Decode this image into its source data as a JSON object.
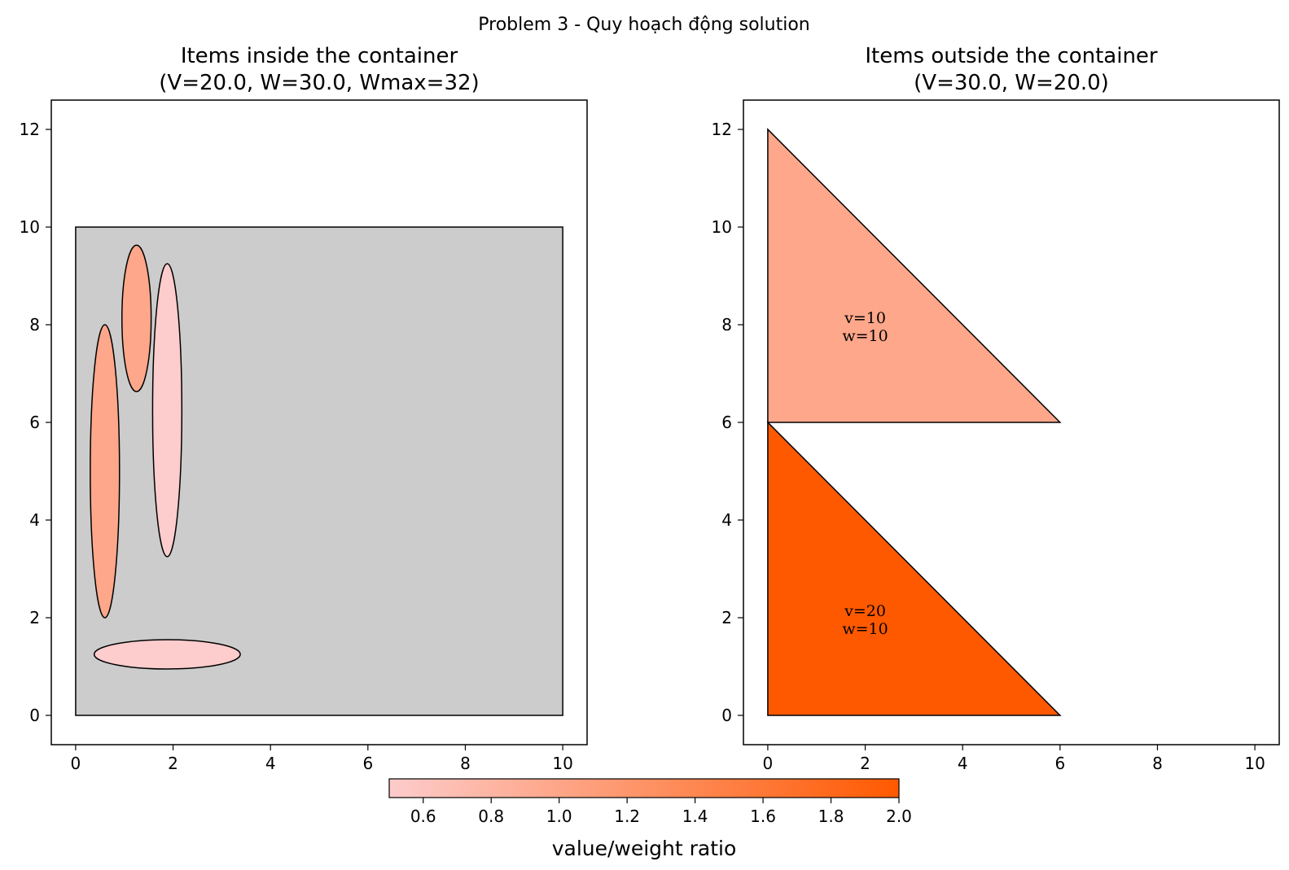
{
  "suptitle": "Problem 3 - Quy hoạch động solution",
  "chart_data": [
    {
      "type": "shapes",
      "title_line1": "Items inside the container",
      "title_line2": "(V=20.0, W=30.0, Wmax=32)",
      "xlim": [
        -0.5,
        10.5
      ],
      "ylim": [
        -0.6,
        12.6
      ],
      "xticks": [
        "0",
        "2",
        "4",
        "6",
        "8",
        "10"
      ],
      "yticks": [
        "0",
        "2",
        "4",
        "6",
        "8",
        "10",
        "12"
      ],
      "container": {
        "x": [
          0,
          10
        ],
        "y": [
          0,
          10
        ],
        "color": "#cccccc"
      },
      "items": [
        {
          "shape": "ellipse",
          "cx": 0.6,
          "cy": 5.0,
          "rx": 0.3,
          "ry": 3.0,
          "color": "#fea78a"
        },
        {
          "shape": "ellipse",
          "cx": 1.25,
          "cy": 8.13,
          "rx": 0.3,
          "ry": 1.5,
          "color": "#fea78a"
        },
        {
          "shape": "ellipse",
          "cx": 1.88,
          "cy": 6.25,
          "rx": 0.3,
          "ry": 3.0,
          "color": "#fdcccc"
        },
        {
          "shape": "ellipse",
          "cx": 1.88,
          "cy": 1.25,
          "rx": 1.5,
          "ry": 0.3,
          "color": "#fdcccc"
        }
      ]
    },
    {
      "type": "shapes",
      "title_line1": "Items outside the container",
      "title_line2": "(V=30.0, W=20.0)",
      "xlim": [
        -0.5,
        10.5
      ],
      "ylim": [
        -0.6,
        12.6
      ],
      "xticks": [
        "0",
        "2",
        "4",
        "6",
        "8",
        "10"
      ],
      "yticks": [
        "0",
        "2",
        "4",
        "6",
        "8",
        "10",
        "12"
      ],
      "items": [
        {
          "shape": "triangle",
          "points": [
            [
              0,
              6
            ],
            [
              0,
              12
            ],
            [
              6,
              6
            ]
          ],
          "color": "#fea78a",
          "label_v": "v=10",
          "label_w": "w=10",
          "label_at": [
            2,
            8
          ]
        },
        {
          "shape": "triangle",
          "points": [
            [
              0,
              0
            ],
            [
              0,
              6
            ],
            [
              6,
              0
            ]
          ],
          "color": "#ff5900",
          "label_v": "v=20",
          "label_w": "w=10",
          "label_at": [
            2,
            2
          ]
        }
      ]
    }
  ],
  "colorbar": {
    "label": "value/weight ratio",
    "range": [
      0.5,
      2.0
    ],
    "ticks": [
      "0.6",
      "0.8",
      "1.0",
      "1.2",
      "1.4",
      "1.6",
      "1.8",
      "2.0"
    ],
    "color_low": "#fdcccc",
    "color_high": "#ff5900"
  }
}
